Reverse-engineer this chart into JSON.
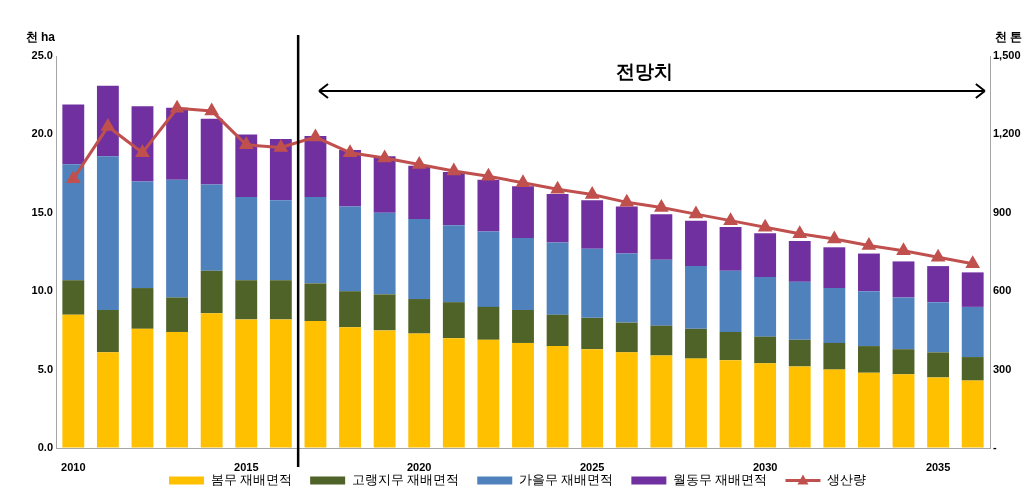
{
  "chart_data": {
    "type": "bar",
    "stacked": true,
    "x": [
      2010,
      2011,
      2012,
      2013,
      2014,
      2015,
      2016,
      2017,
      2018,
      2019,
      2020,
      2021,
      2022,
      2023,
      2024,
      2025,
      2026,
      2027,
      2028,
      2029,
      2030,
      2031,
      2032,
      2033,
      2034,
      2035,
      2036
    ],
    "xlim": [
      2009.5,
      2036.5
    ],
    "xticks": [
      2010,
      2015,
      2020,
      2025,
      2030,
      2035
    ],
    "ylabel": "천 ha",
    "y2label": "천 톤",
    "ylim": [
      0,
      25
    ],
    "yticks": [
      {
        "value": 0,
        "label": "0.0"
      },
      {
        "value": 5,
        "label": "5.0"
      },
      {
        "value": 10,
        "label": "10.0"
      },
      {
        "value": 15,
        "label": "15.0"
      },
      {
        "value": 20,
        "label": "20.0"
      },
      {
        "value": 25,
        "label": "25.0"
      }
    ],
    "y2lim": [
      0,
      1500
    ],
    "y2ticks": [
      {
        "value": 0,
        "label": "-"
      },
      300,
      600,
      900,
      {
        "value": 1200,
        "label": "1,200"
      },
      {
        "value": 1500,
        "label": "1,500"
      }
    ],
    "legend": "bottom",
    "series": [
      {
        "name": "봄무 재배면적",
        "color": "#ffc000",
        "values": [
          8.5,
          6.1,
          7.6,
          7.4,
          8.6,
          8.2,
          8.2,
          8.1,
          7.7,
          7.5,
          7.3,
          7.0,
          6.9,
          6.7,
          6.5,
          6.3,
          6.1,
          5.9,
          5.7,
          5.6,
          5.4,
          5.2,
          5.0,
          4.8,
          4.7,
          4.5,
          4.3
        ]
      },
      {
        "name": "고랭지무 재배면적",
        "color": "#4f6228",
        "values": [
          2.2,
          2.7,
          2.6,
          2.2,
          2.7,
          2.5,
          2.5,
          2.4,
          2.3,
          2.3,
          2.2,
          2.3,
          2.1,
          2.1,
          2.0,
          2.0,
          1.9,
          1.9,
          1.9,
          1.8,
          1.7,
          1.7,
          1.7,
          1.7,
          1.6,
          1.6,
          1.5
        ]
      },
      {
        "name": "가을무 재배면적",
        "color": "#4f81bd",
        "values": [
          7.4,
          9.8,
          6.8,
          7.5,
          5.5,
          5.3,
          5.1,
          5.5,
          5.4,
          5.2,
          5.1,
          4.9,
          4.8,
          4.6,
          4.6,
          4.4,
          4.4,
          4.2,
          4.0,
          3.9,
          3.8,
          3.7,
          3.5,
          3.5,
          3.3,
          3.2,
          3.2
        ]
      },
      {
        "name": "월동무 재배면적",
        "color": "#7030a0",
        "values": [
          3.8,
          4.5,
          4.8,
          4.6,
          4.2,
          4.0,
          3.9,
          3.9,
          3.6,
          3.6,
          3.4,
          3.4,
          3.3,
          3.3,
          3.1,
          3.1,
          3.0,
          2.9,
          2.9,
          2.8,
          2.8,
          2.6,
          2.6,
          2.4,
          2.3,
          2.3,
          2.2
        ]
      },
      {
        "name": "생산량",
        "type": "line",
        "axis": "y2",
        "marker": "triangle",
        "color": "#c0504d",
        "values": [
          1030,
          1230,
          1130,
          1300,
          1290,
          1160,
          1150,
          1190,
          1130,
          1110,
          1085,
          1060,
          1040,
          1015,
          990,
          970,
          940,
          920,
          895,
          870,
          845,
          820,
          800,
          775,
          755,
          730,
          705
        ]
      }
    ],
    "ref_lines": [
      {
        "axis": "x",
        "value": 2016.5,
        "color": "#000000"
      }
    ],
    "annotations": [
      "전망치"
    ]
  }
}
